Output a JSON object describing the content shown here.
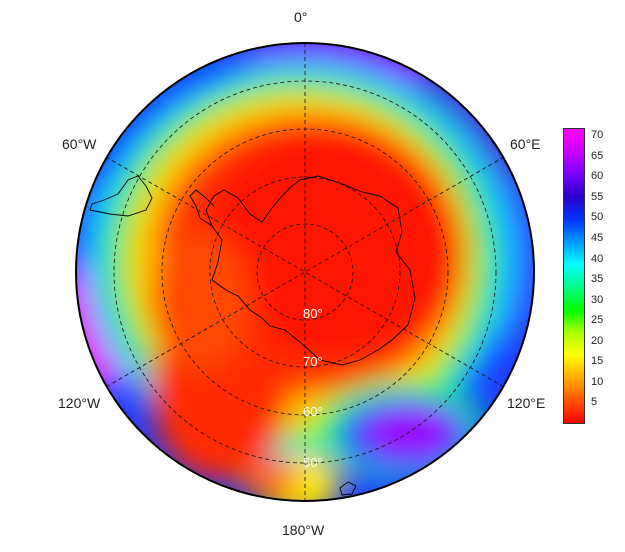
{
  "map": {
    "longitude_labels": [
      {
        "key": "lon-0",
        "text": "0°"
      },
      {
        "key": "lon-60e",
        "text": "60°E"
      },
      {
        "key": "lon-120e",
        "text": "120°E"
      },
      {
        "key": "lon-180w",
        "text": "180°W"
      },
      {
        "key": "lon-120w",
        "text": "120°W"
      },
      {
        "key": "lon-60w",
        "text": "60°W"
      }
    ],
    "latitude_labels": [
      {
        "key": "lat-80",
        "text": "80°"
      },
      {
        "key": "lat-70",
        "text": "70°"
      },
      {
        "key": "lat-60",
        "text": "60°"
      },
      {
        "key": "lat-50",
        "text": "50°"
      }
    ],
    "projection": "south-polar-stereographic",
    "field_colors": {
      "low": "#ff1a00",
      "mid": "#00dd00",
      "high": "#dd00ff"
    }
  },
  "colorbar": {
    "ticks": [
      "70",
      "65",
      "60",
      "55",
      "50",
      "45",
      "40",
      "35",
      "30",
      "25",
      "20",
      "15",
      "10",
      "5"
    ],
    "min": 0,
    "max": 72,
    "colors": [
      "#ff0000",
      "#ff5500",
      "#ffaa00",
      "#ffff00",
      "#aaff00",
      "#00ff00",
      "#00ff88",
      "#00ffff",
      "#0099ff",
      "#0033ff",
      "#2a00cc",
      "#7700ff",
      "#cc00ff",
      "#ff00ff"
    ]
  }
}
